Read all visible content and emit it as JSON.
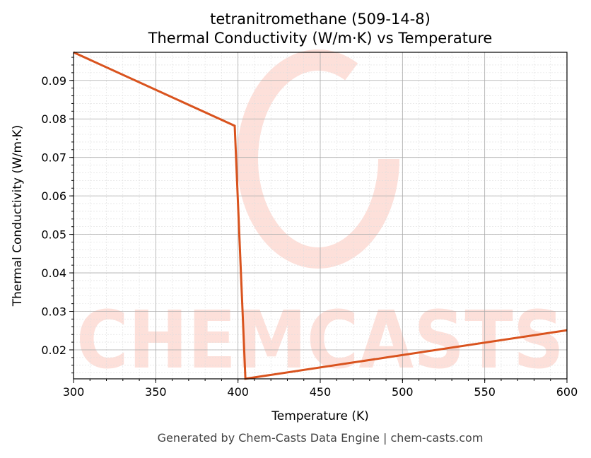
{
  "chart_data": {
    "type": "line",
    "title": "tetranitromethane (509-14-8)",
    "subtitle": "Thermal Conductivity (W/m·K) vs Temperature",
    "xlabel": "Temperature (K)",
    "ylabel": "Thermal Conductivity (W/m·K)",
    "xlim": [
      300,
      600
    ],
    "ylim": [
      0.01247,
      0.0973
    ],
    "xticks": [
      300,
      350,
      400,
      450,
      500,
      550,
      600
    ],
    "xtick_labels": [
      "300",
      "350",
      "400",
      "450",
      "500",
      "550",
      "600"
    ],
    "yticks": [
      0.02,
      0.03,
      0.04,
      0.05,
      0.06,
      0.07,
      0.08,
      0.09
    ],
    "ytick_labels": [
      "0.02",
      "0.03",
      "0.04",
      "0.05",
      "0.06",
      "0.07",
      "0.08",
      "0.09"
    ],
    "grid": true,
    "series": [
      {
        "color": "#d9531e",
        "x": [
          300,
          398,
          404.5,
          600
        ],
        "y": [
          0.0973,
          0.0782,
          0.0125,
          0.0251
        ]
      }
    ]
  },
  "footer": "Generated by Chem-Casts Data Engine | chem-casts.com",
  "watermark": "CHEMCASTS"
}
